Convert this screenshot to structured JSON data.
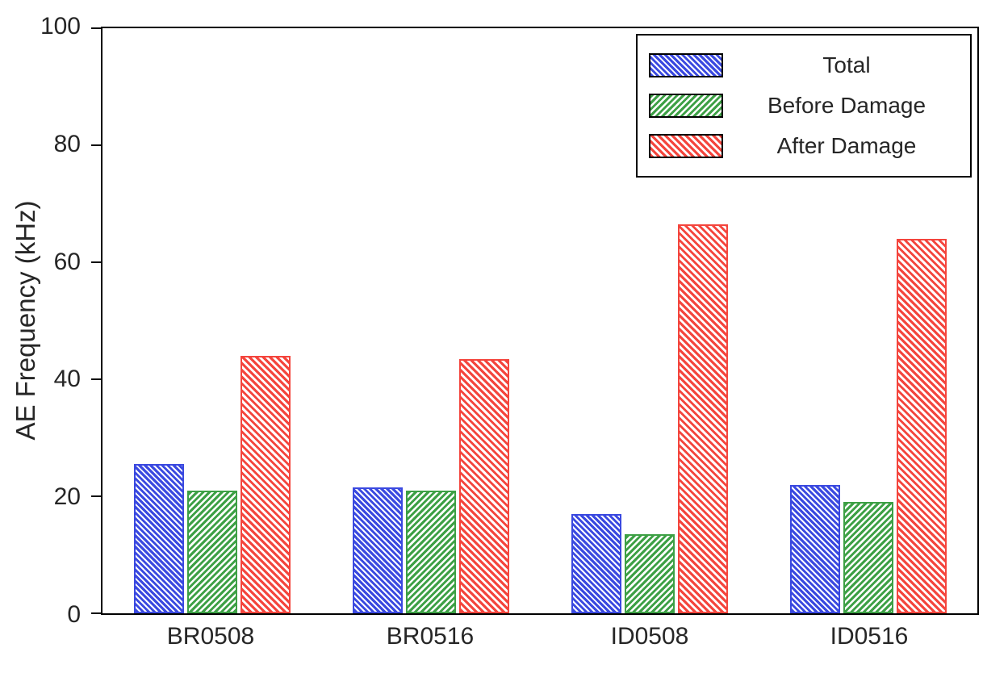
{
  "chart_data": {
    "type": "bar",
    "title": "",
    "xlabel": "",
    "ylabel": "AE Frequency (kHz)",
    "ylim": [
      0,
      100
    ],
    "yticks": [
      0,
      20,
      40,
      60,
      80,
      100
    ],
    "categories": [
      "BR0508",
      "BR0516",
      "ID0508",
      "ID0516"
    ],
    "series": [
      {
        "name": "Total",
        "color": "#3a49e0",
        "hatch": "backslash",
        "values": [
          25.5,
          21.5,
          17.0,
          22.0
        ]
      },
      {
        "name": "Before Damage",
        "color": "#3da045",
        "hatch": "slash",
        "values": [
          21.0,
          21.0,
          13.5,
          19.0
        ]
      },
      {
        "name": "After Damage",
        "color": "#f4453d",
        "hatch": "backslash",
        "values": [
          44.0,
          43.5,
          66.5,
          64.0
        ]
      }
    ],
    "legend_position": "top-right",
    "grid": false
  }
}
